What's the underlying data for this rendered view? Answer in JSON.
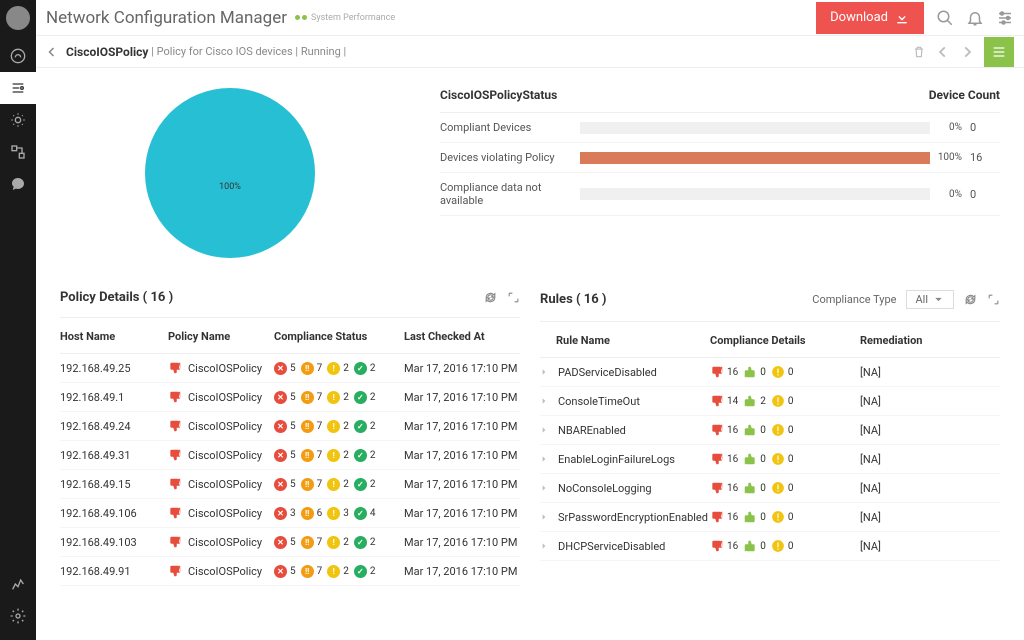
{
  "app": {
    "title": "Network Configuration Manager",
    "status_label": "System Performance",
    "download_label": "Download"
  },
  "breadcrumb": {
    "policy": "CiscoIOSPolicy",
    "desc": "Policy for Cisco IOS devices",
    "state": "Running"
  },
  "pie": {
    "color": "#27bfd3",
    "label": "100%"
  },
  "status": {
    "title": "CiscoIOSPolicyStatus",
    "count_label": "Device Count",
    "rows": [
      {
        "label": "Compliant Devices",
        "pct": "0%",
        "width": 0,
        "count": "0",
        "color": "#f0f0f0"
      },
      {
        "label": "Devices violating Policy",
        "pct": "100%",
        "width": 100,
        "count": "16",
        "color": "#d97b5b"
      },
      {
        "label": "Compliance data not available",
        "pct": "0%",
        "width": 0,
        "count": "0",
        "color": "#f0f0f0"
      }
    ]
  },
  "policy_panel": {
    "title": "Policy Details ( 16 )",
    "columns": {
      "host": "Host Name",
      "policy": "Policy Name",
      "status": "Compliance Status",
      "checked": "Last Checked At"
    },
    "rows": [
      {
        "host": "192.168.49.25",
        "policy": "CiscoIOSPolicy",
        "s": [
          5,
          7,
          2,
          2
        ],
        "checked": "Mar 17, 2016 17:10 PM"
      },
      {
        "host": "192.168.49.1",
        "policy": "CiscoIOSPolicy",
        "s": [
          5,
          7,
          2,
          2
        ],
        "checked": "Mar 17, 2016 17:10 PM"
      },
      {
        "host": "192.168.49.24",
        "policy": "CiscoIOSPolicy",
        "s": [
          5,
          7,
          2,
          2
        ],
        "checked": "Mar 17, 2016 17:10 PM"
      },
      {
        "host": "192.168.49.31",
        "policy": "CiscoIOSPolicy",
        "s": [
          5,
          7,
          2,
          2
        ],
        "checked": "Mar 17, 2016 17:10 PM"
      },
      {
        "host": "192.168.49.15",
        "policy": "CiscoIOSPolicy",
        "s": [
          5,
          7,
          2,
          2
        ],
        "checked": "Mar 17, 2016 17:10 PM"
      },
      {
        "host": "192.168.49.106",
        "policy": "CiscoIOSPolicy",
        "s": [
          3,
          6,
          3,
          4
        ],
        "checked": "Mar 17, 2016 17:10 PM"
      },
      {
        "host": "192.168.49.103",
        "policy": "CiscoIOSPolicy",
        "s": [
          5,
          7,
          2,
          2
        ],
        "checked": "Mar 17, 2016 17:10 PM"
      },
      {
        "host": "192.168.49.91",
        "policy": "CiscoIOSPolicy",
        "s": [
          5,
          7,
          2,
          2
        ],
        "checked": "Mar 17, 2016 17:10 PM"
      }
    ]
  },
  "rules_panel": {
    "title": "Rules ( 16 )",
    "compliance_label": "Compliance Type",
    "compliance_value": "All",
    "columns": {
      "rule": "Rule Name",
      "comp": "Compliance Details",
      "rem": "Remediation"
    },
    "rows": [
      {
        "rule": "PADServiceDisabled",
        "c": [
          16,
          0,
          0
        ],
        "rem": "[NA]"
      },
      {
        "rule": "ConsoleTimeOut",
        "c": [
          14,
          2,
          0
        ],
        "rem": "[NA]"
      },
      {
        "rule": "NBAREnabled",
        "c": [
          16,
          0,
          0
        ],
        "rem": "[NA]"
      },
      {
        "rule": "EnableLoginFailureLogs",
        "c": [
          16,
          0,
          0
        ],
        "rem": "[NA]"
      },
      {
        "rule": "NoConsoleLogging",
        "c": [
          16,
          0,
          0
        ],
        "rem": "[NA]"
      },
      {
        "rule": "SrPasswordEncryptionEnabled",
        "c": [
          16,
          0,
          0
        ],
        "rem": "[NA]"
      },
      {
        "rule": "DHCPServiceDisabled",
        "c": [
          16,
          0,
          0
        ],
        "rem": "[NA]"
      }
    ]
  }
}
